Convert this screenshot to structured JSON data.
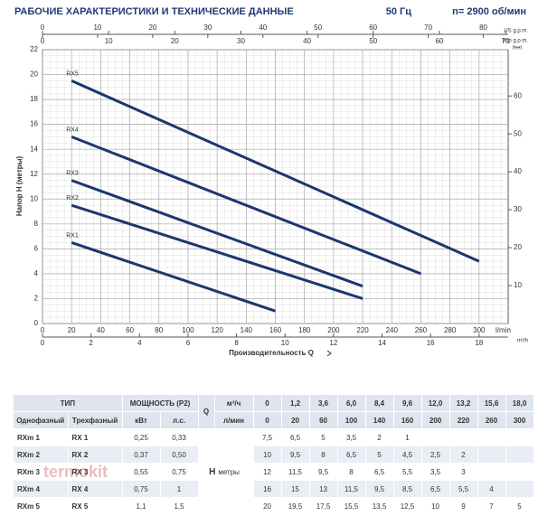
{
  "header": {
    "title": "РАБОЧИЕ ХАРАКТЕРИСТИКИ И ТЕХНИЧЕСКИЕ ДАННЫЕ",
    "frequency": "50 Гц",
    "speed": "n= 2900 об/мин"
  },
  "chart_data": {
    "type": "line",
    "xlabel": "Производительность Q",
    "xunit": "l/min",
    "ylabel": "Напор H (метры)",
    "xlim": [
      0,
      320
    ],
    "xticks": [
      0,
      20,
      40,
      60,
      80,
      100,
      120,
      140,
      160,
      180,
      200,
      220,
      240,
      260,
      280,
      300
    ],
    "ylim": [
      0,
      22
    ],
    "yticks": [
      0,
      2,
      4,
      6,
      8,
      10,
      12,
      14,
      16,
      18,
      20,
      22
    ],
    "y2label": "feet",
    "y2lim": [
      0,
      72.2
    ],
    "y2ticks": [
      10,
      20,
      30,
      40,
      50,
      60
    ],
    "top_axes": [
      {
        "label": "US g.p.m.",
        "lim": [
          0,
          84.5
        ],
        "ticks": [
          0,
          10,
          20,
          30,
          40,
          50,
          60,
          70,
          80
        ]
      },
      {
        "label": "Imp g.p.m.",
        "lim": [
          0,
          70.4
        ],
        "ticks": [
          0,
          10,
          20,
          30,
          40,
          50,
          60,
          70
        ]
      }
    ],
    "bottom_axis2": {
      "label": "m³/h",
      "lim": [
        0,
        19.2
      ],
      "ticks": [
        0,
        2,
        4,
        6,
        8,
        10,
        12,
        14,
        16,
        18
      ]
    },
    "grid": true,
    "series": [
      {
        "name": "RX5",
        "color": "#1c3670",
        "x": [
          20,
          300
        ],
        "values": [
          19.5,
          5
        ]
      },
      {
        "name": "RX4",
        "color": "#1c3670",
        "x": [
          20,
          260
        ],
        "values": [
          15,
          4
        ]
      },
      {
        "name": "RX3",
        "color": "#1c3670",
        "x": [
          20,
          220
        ],
        "values": [
          11.5,
          3
        ]
      },
      {
        "name": "RX2",
        "color": "#1c3670",
        "x": [
          20,
          220
        ],
        "values": [
          9.5,
          2
        ]
      },
      {
        "name": "RX1",
        "color": "#1c3670",
        "x": [
          20,
          160
        ],
        "values": [
          6.5,
          1
        ]
      }
    ]
  },
  "table": {
    "header1": {
      "type": "ТИП",
      "power": "МОЩНОСТЬ (P2)",
      "q": "Q",
      "unit": "м³/ч",
      "flows": [
        "0",
        "1,2",
        "3,6",
        "6,0",
        "8,4",
        "9,6",
        "12,0",
        "13,2",
        "15,6",
        "18,0"
      ]
    },
    "header2": {
      "single": "Однофазный",
      "three": "Трехфазный",
      "kw": "кВт",
      "hp": "л.с.",
      "unit": "л/мин",
      "flows": [
        "0",
        "20",
        "60",
        "100",
        "140",
        "160",
        "200",
        "220",
        "260",
        "300"
      ]
    },
    "h_label": "H",
    "h_unit": "метры",
    "rows": [
      {
        "single": "RXm 1",
        "three": "RX 1",
        "kw": "0,25",
        "hp": "0,33",
        "h": [
          "7,5",
          "6,5",
          "5",
          "3,5",
          "2",
          "1"
        ]
      },
      {
        "single": "RXm 2",
        "three": "RX 2",
        "kw": "0,37",
        "hp": "0,50",
        "h": [
          "10",
          "9,5",
          "8",
          "6,5",
          "5",
          "4,5",
          "2,5",
          "2"
        ]
      },
      {
        "single": "RXm 3",
        "three": "RX 3",
        "kw": "0,55",
        "hp": "0,75",
        "h": [
          "12",
          "11,5",
          "9,5",
          "8",
          "6,5",
          "5,5",
          "3,5",
          "3"
        ]
      },
      {
        "single": "RXm 4",
        "three": "RX 4",
        "kw": "0,75",
        "hp": "1",
        "h": [
          "16",
          "15",
          "13",
          "11,5",
          "9,5",
          "8,5",
          "6,5",
          "5,5",
          "4"
        ]
      },
      {
        "single": "RXm 5",
        "three": "RX 5",
        "kw": "1,1",
        "hp": "1,5",
        "h": [
          "20",
          "19,5",
          "17,5",
          "15,5",
          "13,5",
          "12,5",
          "10",
          "9",
          "7",
          "5"
        ]
      }
    ]
  },
  "watermark": "termokit"
}
